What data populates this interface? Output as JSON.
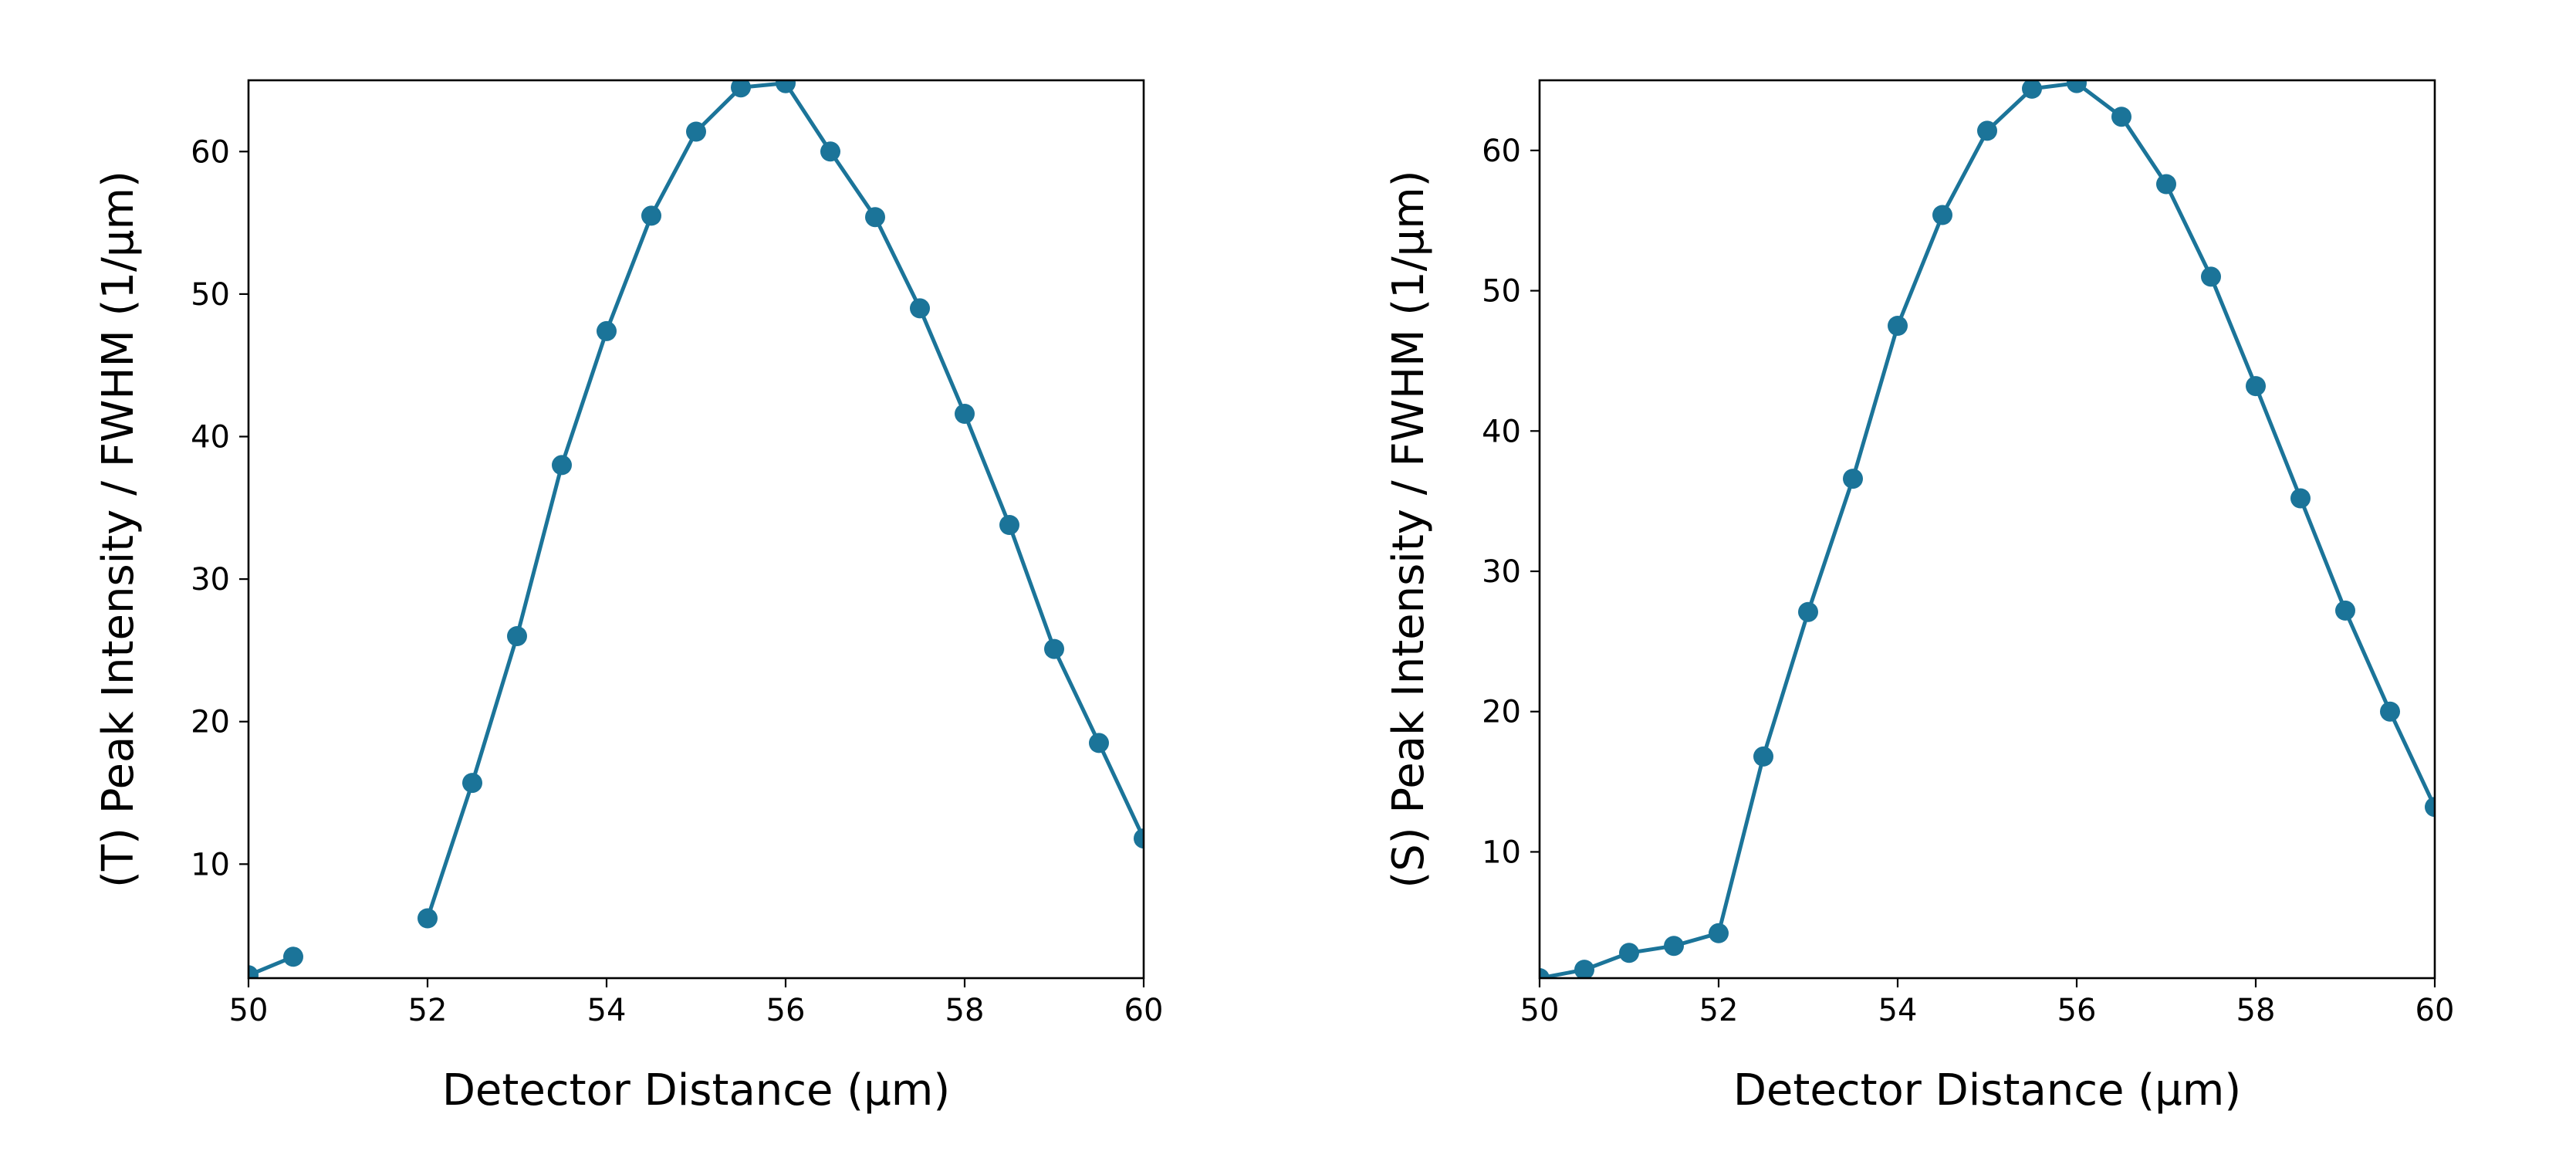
{
  "chart_data": [
    {
      "type": "line",
      "title": "",
      "xlabel": "Detector Distance (μm)",
      "ylabel": "(T) Peak Intensity / FWHM (1/μm)",
      "xlim": [
        50,
        60
      ],
      "ylim": [
        2,
        65
      ],
      "xticks": [
        50,
        52,
        54,
        56,
        58,
        60
      ],
      "yticks": [
        10,
        20,
        30,
        40,
        50,
        60
      ],
      "grid": false,
      "series": [
        {
          "color": "#1b7499",
          "segments": [
            [
              [
                50.0,
                2.2
              ],
              [
                50.5,
                3.5
              ]
            ],
            [
              [
                52.0,
                6.2
              ],
              [
                52.5,
                15.7
              ],
              [
                53.0,
                26.0
              ],
              [
                53.5,
                38.0
              ],
              [
                54.0,
                47.4
              ],
              [
                54.5,
                55.5
              ],
              [
                55.0,
                61.4
              ],
              [
                55.5,
                64.5
              ],
              [
                56.0,
                64.8
              ],
              [
                56.5,
                60.0
              ],
              [
                57.0,
                55.4
              ],
              [
                57.5,
                49.0
              ],
              [
                58.0,
                41.6
              ],
              [
                58.5,
                33.8
              ],
              [
                59.0,
                25.1
              ],
              [
                59.5,
                18.5
              ],
              [
                60.0,
                11.8
              ]
            ]
          ]
        }
      ]
    },
    {
      "type": "line",
      "title": "",
      "xlabel": "Detector Distance (μm)",
      "ylabel": "(S) Peak Intensity / FWHM (1/μm)",
      "xlim": [
        50,
        60
      ],
      "ylim": [
        1,
        65
      ],
      "xticks": [
        50,
        52,
        54,
        56,
        58,
        60
      ],
      "yticks": [
        10,
        20,
        30,
        40,
        50,
        60
      ],
      "grid": false,
      "series": [
        {
          "color": "#1b7499",
          "segments": [
            [
              [
                50.0,
                1.0
              ],
              [
                50.5,
                1.6
              ],
              [
                51.0,
                2.8
              ],
              [
                51.5,
                3.3
              ],
              [
                52.0,
                4.2
              ],
              [
                52.5,
                16.8
              ],
              [
                53.0,
                27.1
              ],
              [
                53.5,
                36.6
              ],
              [
                54.0,
                47.5
              ],
              [
                54.5,
                55.4
              ],
              [
                55.0,
                61.4
              ],
              [
                55.5,
                64.4
              ],
              [
                56.0,
                64.8
              ],
              [
                56.5,
                62.4
              ],
              [
                57.0,
                57.6
              ],
              [
                57.5,
                51.0
              ],
              [
                58.0,
                43.2
              ],
              [
                58.5,
                35.2
              ],
              [
                59.0,
                27.2
              ],
              [
                59.5,
                20.0
              ],
              [
                60.0,
                13.2
              ]
            ]
          ]
        }
      ]
    }
  ]
}
